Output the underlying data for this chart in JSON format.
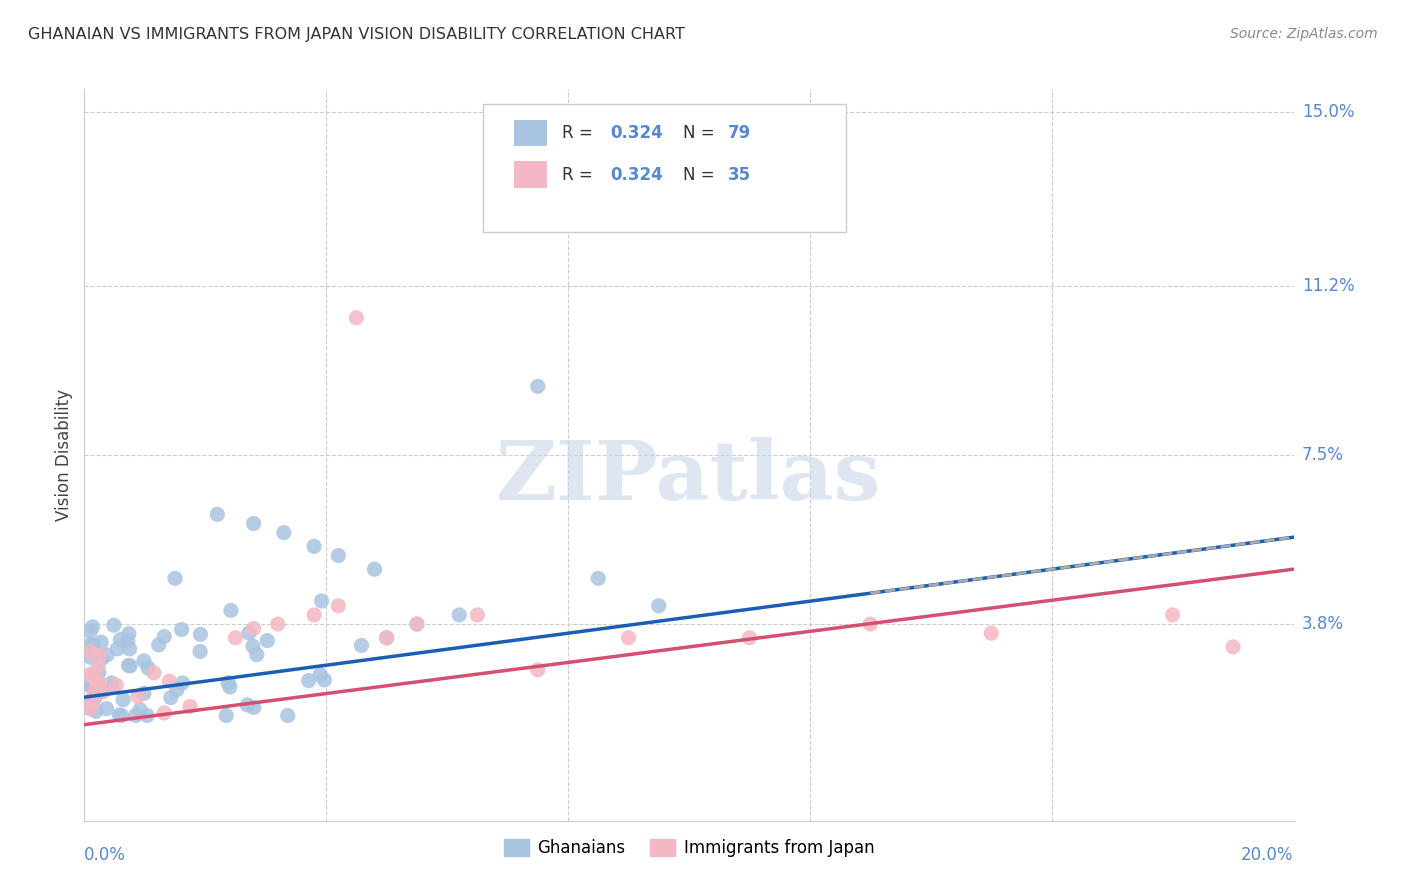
{
  "title": "GHANAIAN VS IMMIGRANTS FROM JAPAN VISION DISABILITY CORRELATION CHART",
  "source": "Source: ZipAtlas.com",
  "ylabel": "Vision Disability",
  "xlim": [
    0.0,
    0.2
  ],
  "ylim": [
    -0.005,
    0.155
  ],
  "xticks": [
    0.0,
    0.04,
    0.08,
    0.12,
    0.16,
    0.2
  ],
  "ytick_positions": [
    0.038,
    0.075,
    0.112,
    0.15
  ],
  "ytick_labels": [
    "3.8%",
    "7.5%",
    "11.2%",
    "15.0%"
  ],
  "grid_color": "#cccccc",
  "background_color": "#ffffff",
  "watermark_text": "ZIPatlas",
  "ghanaian_color": "#a8c4e0",
  "japan_color": "#f4b8c4",
  "ghanaian_line_color": "#1a5fb4",
  "japan_line_color": "#d45070",
  "trendline_extension_color": "#aaaaaa",
  "ghanaian_trend": [
    0.022,
    0.057
  ],
  "japan_trend": [
    0.016,
    0.05
  ],
  "ghanaian_trend_ext_start": 0.13,
  "marker_size": 120
}
